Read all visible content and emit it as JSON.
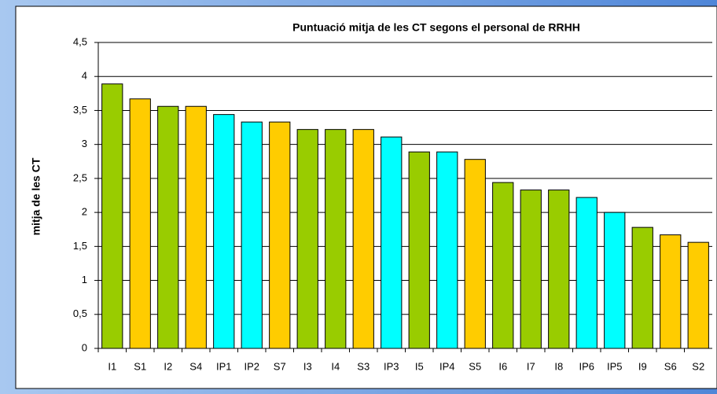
{
  "chart_data": {
    "type": "bar",
    "title": "Puntuació mitja de les CT segons el personal de RRHH",
    "y_label": "mitja de les CT",
    "categories": [
      "I1",
      "S1",
      "I2",
      "S4",
      "IP1",
      "IP2",
      "S7",
      "I3",
      "I4",
      "S3",
      "IP3",
      "I5",
      "IP4",
      "S5",
      "I6",
      "I7",
      "I8",
      "IP6",
      "IP5",
      "I9",
      "S6",
      "S2"
    ],
    "values": [
      3.89,
      3.67,
      3.56,
      3.56,
      3.44,
      3.33,
      3.33,
      3.22,
      3.22,
      3.22,
      3.11,
      2.89,
      2.89,
      2.78,
      2.44,
      2.33,
      2.33,
      2.22,
      2.0,
      1.78,
      1.67,
      1.56
    ],
    "colors": [
      "#99cc00",
      "#ffcc00",
      "#99cc00",
      "#ffcc00",
      "#00ffff",
      "#00ffff",
      "#ffcc00",
      "#99cc00",
      "#99cc00",
      "#ffcc00",
      "#00ffff",
      "#99cc00",
      "#00ffff",
      "#ffcc00",
      "#99cc00",
      "#99cc00",
      "#99cc00",
      "#00ffff",
      "#00ffff",
      "#99cc00",
      "#ffcc00",
      "#ffcc00"
    ],
    "ylim": [
      0,
      4.5
    ],
    "yticks": [
      0,
      {
        "value": 0.5,
        "label": "0,5"
      },
      1,
      {
        "value": 1.5,
        "label": "1,5"
      },
      2,
      {
        "value": 2.5,
        "label": "2,5"
      },
      3,
      {
        "value": 3.5,
        "label": "3,5"
      },
      4,
      {
        "value": 4.5,
        "label": "4,5"
      }
    ],
    "grid": true
  }
}
